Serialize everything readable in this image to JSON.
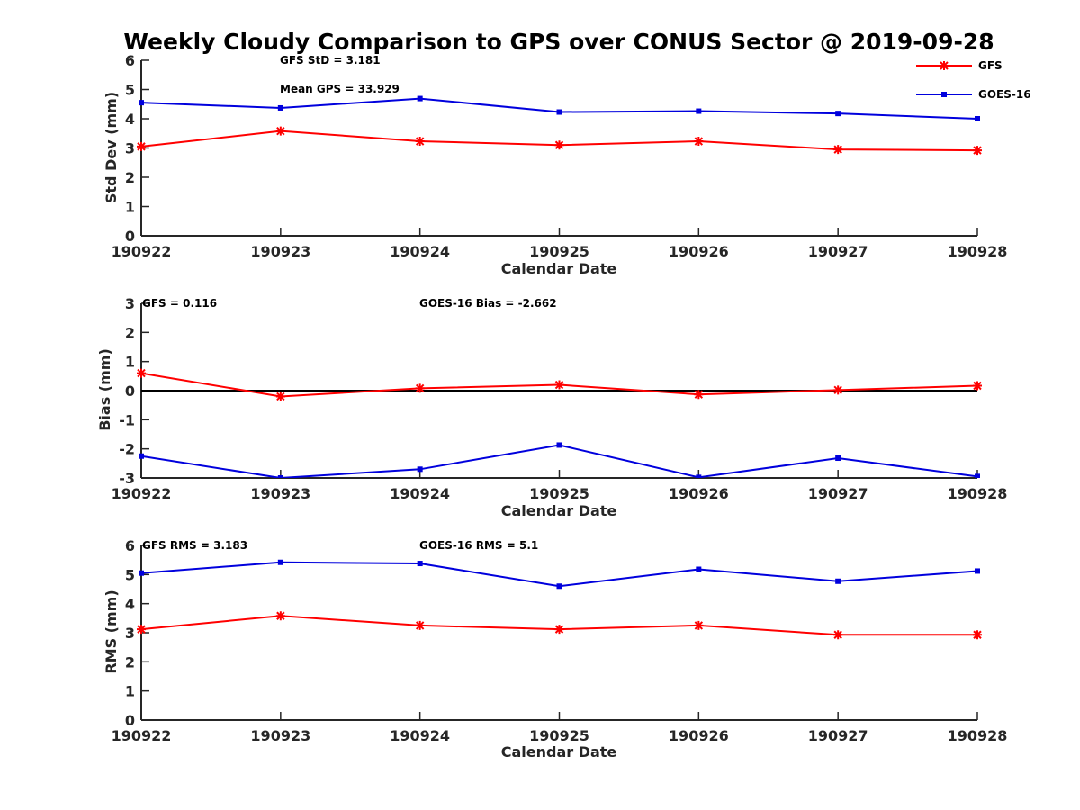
{
  "title": "Weekly Cloudy Comparison to GPS over CONUS Sector @ 2019-09-28",
  "legend": [
    {
      "name": "GFS",
      "color": "#ff0000",
      "marker": "asterisk"
    },
    {
      "name": "GOES-16",
      "color": "#0000dd",
      "marker": "square"
    }
  ],
  "chart_data": [
    {
      "type": "line",
      "categories": [
        "190922",
        "190923",
        "190924",
        "190925",
        "190926",
        "190927",
        "190928"
      ],
      "xlabel": "Calendar Date",
      "ylabel": "Std Dev (mm)",
      "ylim": [
        0,
        6
      ],
      "yticks": [
        0,
        1,
        2,
        3,
        4,
        5,
        6
      ],
      "series": [
        {
          "name": "GFS",
          "color": "#ff0000",
          "marker": "asterisk",
          "values": [
            3.05,
            3.58,
            3.23,
            3.1,
            3.23,
            2.95,
            2.92
          ]
        },
        {
          "name": "GOES-16",
          "color": "#0000dd",
          "marker": "square",
          "values": [
            4.55,
            4.37,
            4.69,
            4.23,
            4.26,
            4.18,
            4.0
          ]
        }
      ],
      "annotations": [
        "GFS StD = 3.181",
        "Mean GPS = 33.929"
      ],
      "legend": "top-right"
    },
    {
      "type": "line",
      "categories": [
        "190922",
        "190923",
        "190924",
        "190925",
        "190926",
        "190927",
        "190928"
      ],
      "xlabel": "Calendar Date",
      "ylabel": "Bias (mm)",
      "ylim": [
        -3,
        3
      ],
      "yticks": [
        -3,
        -2,
        -1,
        0,
        1,
        2,
        3
      ],
      "zero_line": true,
      "series": [
        {
          "name": "GFS",
          "color": "#ff0000",
          "marker": "asterisk",
          "values": [
            0.6,
            -0.2,
            0.08,
            0.2,
            -0.13,
            0.02,
            0.17
          ]
        },
        {
          "name": "GOES-16",
          "color": "#0000dd",
          "marker": "square",
          "values": [
            -2.25,
            -3.0,
            -2.7,
            -1.87,
            -2.98,
            -2.32,
            -2.95
          ]
        }
      ],
      "annotations": [
        "GFS = 0.116",
        "GOES-16 Bias  = -2.662"
      ]
    },
    {
      "type": "line",
      "categories": [
        "190922",
        "190923",
        "190924",
        "190925",
        "190926",
        "190927",
        "190928"
      ],
      "xlabel": "Calendar Date",
      "ylabel": "RMS (mm)",
      "ylim": [
        0,
        6
      ],
      "yticks": [
        0,
        1,
        2,
        3,
        4,
        5,
        6
      ],
      "series": [
        {
          "name": "GFS",
          "color": "#ff0000",
          "marker": "asterisk",
          "values": [
            3.12,
            3.58,
            3.25,
            3.12,
            3.25,
            2.93,
            2.93
          ]
        },
        {
          "name": "GOES-16",
          "color": "#0000dd",
          "marker": "square",
          "values": [
            5.05,
            5.42,
            5.38,
            4.6,
            5.18,
            4.77,
            5.12
          ]
        }
      ],
      "annotations": [
        "GFS RMS = 3.183",
        "GOES-16 RMS = 5.1"
      ]
    }
  ]
}
